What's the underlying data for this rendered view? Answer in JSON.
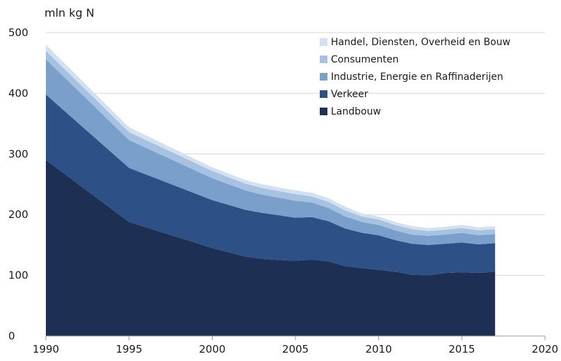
{
  "chart_data": {
    "type": "area",
    "stacked": true,
    "unit_label": "mln kg N",
    "x_ticks": [
      "1990",
      "1995",
      "2000",
      "2005",
      "2010",
      "2015",
      "2020"
    ],
    "y_ticks": [
      "0",
      "100",
      "200",
      "300",
      "400",
      "500"
    ],
    "xlim": [
      1990,
      2020
    ],
    "ylim": [
      0,
      500
    ],
    "grid": true,
    "legend_position": "top-right",
    "x": [
      1990,
      1995,
      2000,
      2002,
      2003,
      2005,
      2006,
      2007,
      2008,
      2009,
      2010,
      2011,
      2012,
      2013,
      2014,
      2015,
      2016,
      2017
    ],
    "series": [
      {
        "name": "Landbouw",
        "color": "#1d2f52",
        "values": [
          290,
          188,
          145,
          131,
          127,
          124,
          126,
          123,
          115,
          112,
          109,
          106,
          101,
          100,
          104,
          105,
          104,
          106
        ]
      },
      {
        "name": "Verkeer",
        "color": "#2d5187",
        "values": [
          108,
          89,
          79,
          77,
          76,
          71,
          70,
          66,
          62,
          58,
          57,
          52,
          51,
          50,
          48,
          49,
          47,
          47
        ]
      },
      {
        "name": "Industrie, Energie en Raffinaderijen",
        "color": "#7a9fcb",
        "values": [
          58,
          46,
          36,
          32,
          30,
          28,
          24,
          22,
          20,
          18,
          17,
          16,
          15,
          15,
          15,
          16,
          15,
          15
        ]
      },
      {
        "name": "Consumenten",
        "color": "#a7c1e0",
        "values": [
          14,
          13,
          12,
          11,
          11,
          11,
          10,
          10,
          10,
          9,
          9,
          9,
          9,
          8,
          8,
          8,
          8,
          8
        ]
      },
      {
        "name": "Handel, Diensten, Overheid en Bouw",
        "color": "#d2e1f1",
        "values": [
          10,
          8,
          6,
          6,
          6,
          6,
          6,
          6,
          6,
          5,
          5,
          5,
          5,
          5,
          5,
          5,
          5,
          5
        ]
      }
    ]
  }
}
